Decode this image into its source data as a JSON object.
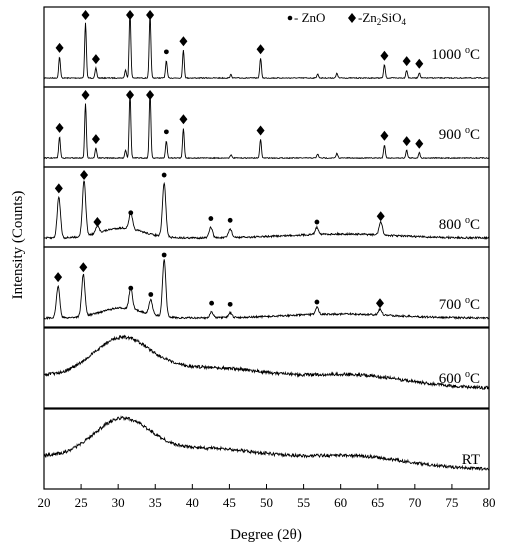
{
  "chart_data": {
    "type": "line",
    "title": "",
    "xlabel": "Degree (2θ)",
    "ylabel": "Intensity (Counts)",
    "xlim": [
      20,
      80
    ],
    "xticks": [
      "20",
      "25",
      "30",
      "35",
      "40",
      "45",
      "50",
      "55",
      "60",
      "65",
      "70",
      "75",
      "80"
    ],
    "grid": false,
    "legend": {
      "position": "top-right",
      "entries": [
        {
          "marker": "circle",
          "label": "- ZnO"
        },
        {
          "marker": "diamond",
          "label": "-Zn2SiO4"
        }
      ]
    },
    "series": [
      {
        "name": "1000 °C",
        "label": "1000 ",
        "label_sup": "o",
        "label_unit": "C",
        "peaks": [
          {
            "x": 22.1,
            "height": 0.32
          },
          {
            "x": 25.6,
            "height": 0.83
          },
          {
            "x": 27.0,
            "height": 0.15
          },
          {
            "x": 31.0,
            "height": 0.12
          },
          {
            "x": 31.6,
            "height": 1.0
          },
          {
            "x": 34.3,
            "height": 0.95
          },
          {
            "x": 36.5,
            "height": 0.26
          },
          {
            "x": 38.8,
            "height": 0.42
          },
          {
            "x": 45.2,
            "height": 0.05
          },
          {
            "x": 49.2,
            "height": 0.3
          },
          {
            "x": 56.9,
            "height": 0.06
          },
          {
            "x": 59.5,
            "height": 0.07
          },
          {
            "x": 65.9,
            "height": 0.2
          },
          {
            "x": 68.9,
            "height": 0.12
          },
          {
            "x": 70.6,
            "height": 0.08
          }
        ],
        "markers": [
          {
            "x": 22.1,
            "type": "diamond"
          },
          {
            "x": 25.6,
            "type": "diamond"
          },
          {
            "x": 27.0,
            "type": "diamond"
          },
          {
            "x": 31.6,
            "type": "diamond"
          },
          {
            "x": 34.3,
            "type": "diamond"
          },
          {
            "x": 36.5,
            "type": "circle"
          },
          {
            "x": 38.8,
            "type": "diamond"
          },
          {
            "x": 49.2,
            "type": "diamond"
          },
          {
            "x": 65.9,
            "type": "diamond"
          },
          {
            "x": 68.9,
            "type": "diamond"
          },
          {
            "x": 70.6,
            "type": "diamond"
          }
        ]
      },
      {
        "name": "900 °C",
        "label": "900 ",
        "label_sup": "o",
        "label_unit": "C",
        "peaks": [
          {
            "x": 22.1,
            "height": 0.32
          },
          {
            "x": 25.6,
            "height": 0.82
          },
          {
            "x": 27.0,
            "height": 0.15
          },
          {
            "x": 31.0,
            "height": 0.12
          },
          {
            "x": 31.6,
            "height": 0.98
          },
          {
            "x": 34.3,
            "height": 1.0
          },
          {
            "x": 36.5,
            "height": 0.26
          },
          {
            "x": 38.8,
            "height": 0.45
          },
          {
            "x": 45.2,
            "height": 0.05
          },
          {
            "x": 49.2,
            "height": 0.28
          },
          {
            "x": 56.9,
            "height": 0.06
          },
          {
            "x": 59.5,
            "height": 0.07
          },
          {
            "x": 65.9,
            "height": 0.2
          },
          {
            "x": 68.9,
            "height": 0.12
          },
          {
            "x": 70.6,
            "height": 0.08
          }
        ],
        "markers": [
          {
            "x": 22.1,
            "type": "diamond"
          },
          {
            "x": 25.6,
            "type": "diamond"
          },
          {
            "x": 27.0,
            "type": "diamond"
          },
          {
            "x": 31.6,
            "type": "diamond"
          },
          {
            "x": 34.3,
            "type": "diamond"
          },
          {
            "x": 36.5,
            "type": "circle"
          },
          {
            "x": 38.8,
            "type": "diamond"
          },
          {
            "x": 49.2,
            "type": "diamond"
          },
          {
            "x": 65.9,
            "type": "diamond"
          },
          {
            "x": 68.9,
            "type": "diamond"
          },
          {
            "x": 70.6,
            "type": "diamond"
          }
        ]
      },
      {
        "name": "800 °C",
        "label": "800 ",
        "label_sup": "o",
        "label_unit": "C",
        "peaks": [
          {
            "x": 22.0,
            "height": 0.7
          },
          {
            "x": 25.4,
            "height": 0.96
          },
          {
            "x": 27.2,
            "height": 0.12
          },
          {
            "x": 31.7,
            "height": 0.28
          },
          {
            "x": 36.2,
            "height": 0.93
          },
          {
            "x": 42.5,
            "height": 0.18
          },
          {
            "x": 45.1,
            "height": 0.15
          },
          {
            "x": 56.8,
            "height": 0.12
          },
          {
            "x": 65.4,
            "height": 0.22
          }
        ],
        "markers": [
          {
            "x": 22.0,
            "type": "diamond"
          },
          {
            "x": 25.4,
            "type": "diamond"
          },
          {
            "x": 27.2,
            "type": "diamond"
          },
          {
            "x": 31.7,
            "type": "circle"
          },
          {
            "x": 36.2,
            "type": "circle"
          },
          {
            "x": 42.5,
            "type": "circle"
          },
          {
            "x": 45.1,
            "type": "circle"
          },
          {
            "x": 56.8,
            "type": "circle"
          },
          {
            "x": 65.4,
            "type": "diamond"
          }
        ]
      },
      {
        "name": "700 °C",
        "label": "700 ",
        "label_sup": "o",
        "label_unit": "C",
        "peaks": [
          {
            "x": 21.9,
            "height": 0.55
          },
          {
            "x": 25.3,
            "height": 0.72
          },
          {
            "x": 31.7,
            "height": 0.36
          },
          {
            "x": 34.4,
            "height": 0.25
          },
          {
            "x": 36.2,
            "height": 0.98
          },
          {
            "x": 42.6,
            "height": 0.1
          },
          {
            "x": 45.1,
            "height": 0.08
          },
          {
            "x": 56.8,
            "height": 0.12
          },
          {
            "x": 65.3,
            "height": 0.1
          }
        ],
        "markers": [
          {
            "x": 21.9,
            "type": "diamond"
          },
          {
            "x": 25.3,
            "type": "diamond"
          },
          {
            "x": 31.7,
            "type": "circle"
          },
          {
            "x": 34.4,
            "type": "circle"
          },
          {
            "x": 36.2,
            "type": "circle"
          },
          {
            "x": 42.6,
            "type": "circle"
          },
          {
            "x": 45.1,
            "type": "circle"
          },
          {
            "x": 56.8,
            "type": "circle"
          },
          {
            "x": 65.3,
            "type": "diamond"
          }
        ]
      },
      {
        "name": "600 °C",
        "label": "600 ",
        "label_sup": "o",
        "label_unit": "C",
        "peaks": [],
        "markers": []
      },
      {
        "name": "RT",
        "label": "RT",
        "label_sup": "",
        "label_unit": "",
        "peaks": [],
        "markers": []
      }
    ]
  }
}
